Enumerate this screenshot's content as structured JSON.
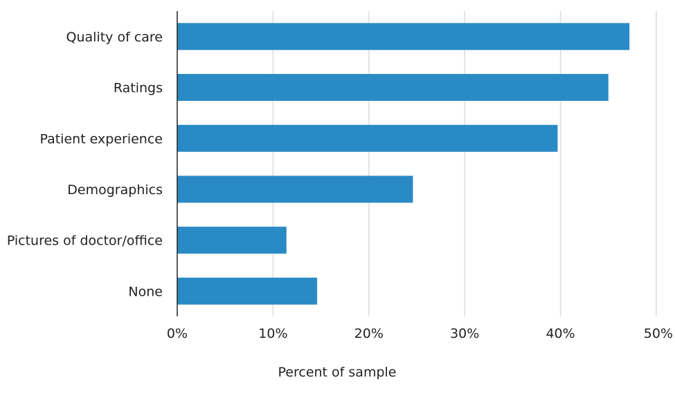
{
  "chart_data": {
    "type": "bar",
    "orientation": "horizontal",
    "categories": [
      "Quality of care",
      "Ratings",
      "Patient experience",
      "Demographics",
      "Pictures of doctor/office",
      "None"
    ],
    "values": [
      47.2,
      45.0,
      39.7,
      24.6,
      11.4,
      14.6
    ],
    "xlabel": "Percent of sample",
    "ylabel": "",
    "xlim": [
      0,
      50
    ],
    "xticks": [
      0,
      10,
      20,
      30,
      40,
      50
    ],
    "tick_labels": [
      "0%",
      "10%",
      "20%",
      "30%",
      "40%",
      "50%"
    ],
    "grid": "vertical",
    "legend": "none",
    "bar_color": "#2a8ac6"
  }
}
